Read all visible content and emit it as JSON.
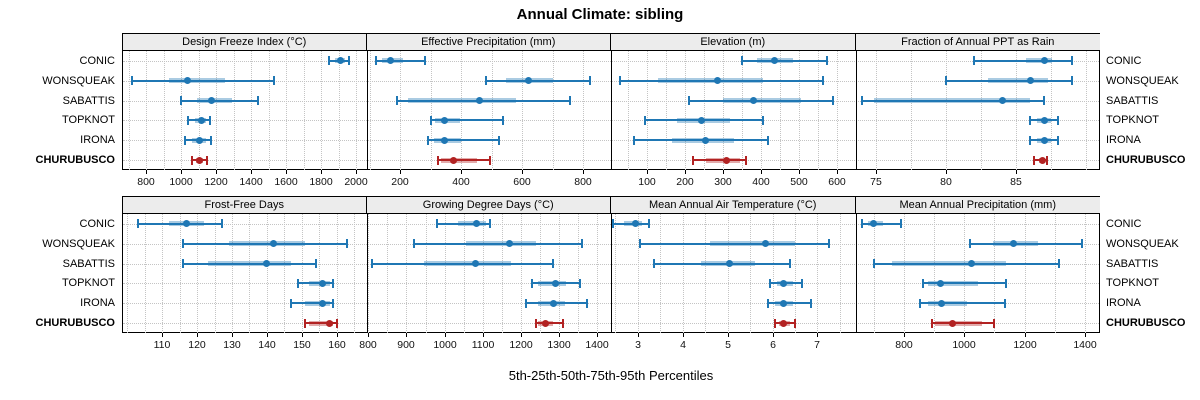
{
  "title": "Annual Climate: sibling",
  "caption": "5th-25th-50th-75th-95th Percentiles",
  "colors": {
    "series": "#1f77b4",
    "series_band": "rgba(31,119,180,0.38)",
    "highlight": "#b22222",
    "highlight_band": "rgba(178,34,34,0.38)",
    "grid": "#c4c4c4",
    "header_bg": "#ececec",
    "border": "#000000"
  },
  "chart_data": {
    "type": "trellis-dotplot",
    "title": "Annual Climate: sibling",
    "xlabel": "5th-25th-50th-75th-95th Percentiles",
    "legend_position": "none",
    "grid": "dotted",
    "percentiles": [
      5,
      25,
      50,
      75,
      95
    ],
    "sites": [
      "CONIC",
      "WONSQUEAK",
      "SABATTIS",
      "TOPKNOT",
      "IRONA",
      "CHURUBUSCO"
    ],
    "highlight_site": "CHURUBUSCO",
    "panels": [
      {
        "title": "Design Freeze Index (°C)",
        "ticks": [
          800,
          1000,
          1200,
          1400,
          1600,
          1800,
          2000
        ],
        "xlim": [
          660,
          2060
        ],
        "values": [
          [
            1845,
            1880,
            1910,
            1935,
            1960
          ],
          [
            720,
            930,
            1035,
            1250,
            1530
          ],
          [
            1000,
            1090,
            1170,
            1290,
            1440
          ],
          [
            1040,
            1080,
            1115,
            1140,
            1165
          ],
          [
            1020,
            1060,
            1105,
            1140,
            1170
          ],
          [
            1060,
            1085,
            1105,
            1125,
            1145
          ]
        ]
      },
      {
        "title": "Effective Precipitation (mm)",
        "ticks": [
          200,
          400,
          600,
          800
        ],
        "xlim": [
          90,
          890
        ],
        "values": [
          [
            120,
            140,
            170,
            210,
            280
          ],
          [
            480,
            545,
            620,
            700,
            820
          ],
          [
            190,
            225,
            460,
            580,
            755
          ],
          [
            300,
            315,
            345,
            395,
            535
          ],
          [
            290,
            310,
            345,
            400,
            525
          ],
          [
            325,
            335,
            375,
            450,
            495
          ]
        ]
      },
      {
        "title": "Elevation (m)",
        "ticks": [
          100,
          200,
          300,
          400,
          500,
          600
        ],
        "xlim": [
          5,
          650
        ],
        "values": [
          [
            350,
            390,
            435,
            485,
            575
          ],
          [
            30,
            130,
            285,
            405,
            565
          ],
          [
            210,
            300,
            380,
            505,
            590
          ],
          [
            95,
            180,
            245,
            320,
            405
          ],
          [
            65,
            165,
            255,
            330,
            420
          ],
          [
            220,
            255,
            310,
            345,
            360
          ]
        ]
      },
      {
        "title": "Fraction of Annual PPT as Rain",
        "ticks": [
          75,
          80,
          85
        ],
        "xlim": [
          73.5,
          91
        ],
        "values": [
          [
            82,
            85.7,
            87,
            87.6,
            89
          ],
          [
            80,
            83,
            86,
            87.3,
            89
          ],
          [
            74,
            74.8,
            84,
            86,
            87
          ],
          [
            86,
            86.5,
            87,
            87.5,
            88
          ],
          [
            86,
            86.5,
            87,
            87.5,
            88
          ],
          [
            86.3,
            86.6,
            86.9,
            87,
            87.2
          ]
        ]
      },
      {
        "title": "Frost-Free Days",
        "ticks": [
          110,
          120,
          130,
          140,
          150,
          160
        ],
        "xlim": [
          98.5,
          168.5
        ],
        "values": [
          [
            103,
            112,
            117,
            122,
            127
          ],
          [
            116,
            129,
            142,
            151,
            163
          ],
          [
            116,
            123,
            140,
            147,
            154
          ],
          [
            149,
            152,
            156,
            158,
            159
          ],
          [
            147,
            151,
            156,
            158,
            159
          ],
          [
            151,
            152,
            158,
            159,
            160
          ]
        ]
      },
      {
        "title": "Growing Degree Days (°C)",
        "ticks": [
          800,
          900,
          1000,
          1100,
          1200,
          1300,
          1400
        ],
        "xlim": [
          795,
          1437
        ],
        "values": [
          [
            980,
            1035,
            1085,
            1110,
            1120
          ],
          [
            920,
            1055,
            1170,
            1240,
            1360
          ],
          [
            810,
            945,
            1080,
            1175,
            1285
          ],
          [
            1230,
            1245,
            1290,
            1320,
            1355
          ],
          [
            1215,
            1245,
            1285,
            1315,
            1375
          ],
          [
            1240,
            1245,
            1265,
            1285,
            1310
          ]
        ]
      },
      {
        "title": "Mean Annual Air Temperature (°C)",
        "ticks": [
          3,
          4,
          5,
          6,
          7
        ],
        "xlim": [
          2.4,
          7.85
        ],
        "values": [
          [
            2.45,
            2.7,
            2.95,
            3.1,
            3.25
          ],
          [
            3.05,
            4.6,
            5.85,
            6.5,
            7.25
          ],
          [
            3.35,
            4.4,
            5.05,
            5.6,
            6.4
          ],
          [
            5.95,
            6.1,
            6.25,
            6.45,
            6.65
          ],
          [
            5.9,
            6.05,
            6.25,
            6.45,
            6.85
          ],
          [
            6.05,
            6.15,
            6.25,
            6.4,
            6.5
          ]
        ]
      },
      {
        "title": "Mean Annual Precipitation (mm)",
        "ticks": [
          800,
          1000,
          1200,
          1400
        ],
        "xlim": [
          640,
          1450
        ],
        "values": [
          [
            660,
            680,
            700,
            730,
            790
          ],
          [
            1020,
            1095,
            1165,
            1245,
            1390
          ],
          [
            700,
            760,
            1025,
            1140,
            1315
          ],
          [
            865,
            880,
            920,
            1045,
            1140
          ],
          [
            855,
            880,
            925,
            1010,
            1135
          ],
          [
            895,
            905,
            960,
            1060,
            1100
          ]
        ]
      }
    ]
  }
}
